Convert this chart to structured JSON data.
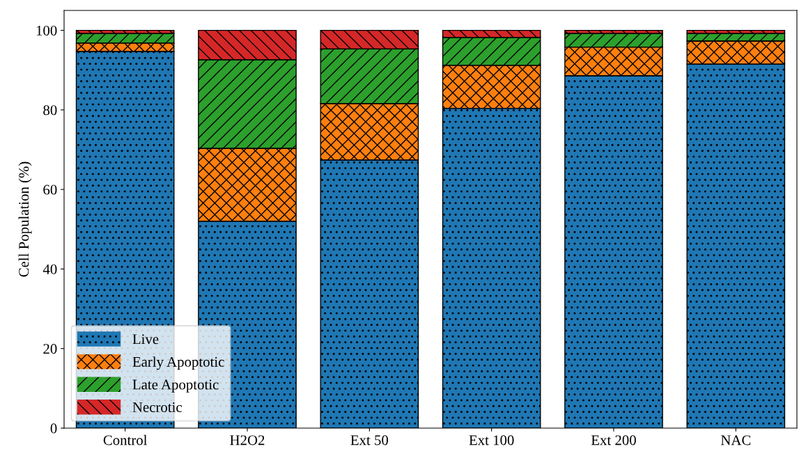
{
  "chart_data": {
    "type": "bar",
    "stacked": true,
    "ylabel": "Cell Population (%)",
    "categories": [
      "Control",
      "H2O2",
      "Ext 50",
      "Ext 100",
      "Ext 200",
      "NAC"
    ],
    "series": [
      {
        "name": "Live",
        "color": "#1f77b4",
        "values": [
          94.7,
          52.0,
          67.4,
          80.4,
          88.6,
          91.5
        ]
      },
      {
        "name": "Early Apoptotic",
        "color": "#ff7f0e",
        "values": [
          2.1,
          18.3,
          14.2,
          10.8,
          7.2,
          5.8
        ]
      },
      {
        "name": "Late Apoptotic",
        "color": "#2ca02c",
        "values": [
          2.4,
          22.3,
          13.7,
          7.0,
          3.4,
          1.9
        ]
      },
      {
        "name": "Necrotic",
        "color": "#d62728",
        "values": [
          0.8,
          7.4,
          4.7,
          1.8,
          0.8,
          0.8
        ]
      }
    ],
    "ylim": [
      0,
      105
    ],
    "yticks": [
      0,
      20,
      40,
      60,
      80,
      100
    ],
    "grid": false,
    "legend": "bottom left"
  }
}
